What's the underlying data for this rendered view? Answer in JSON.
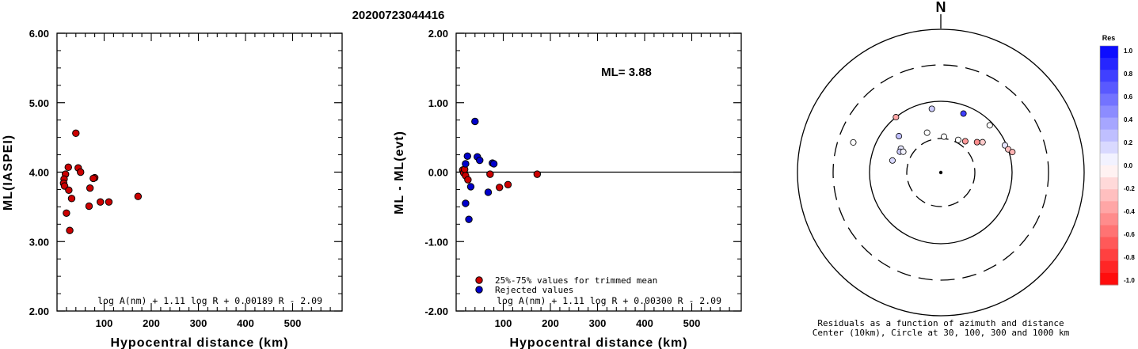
{
  "title": "20200723044416",
  "chart_data": [
    {
      "type": "scatter",
      "xlabel": "Hypocentral distance (km)",
      "ylabel": "ML(IASPEI)",
      "xlim": [
        0,
        600
      ],
      "ylim": [
        2.0,
        6.0
      ],
      "xticks": [
        "100",
        "200",
        "300",
        "400",
        "500"
      ],
      "yticks": [
        "2.00",
        "3.00",
        "4.00",
        "5.00",
        "6.00"
      ],
      "formula": "log A(nm) + 1.11 log R + 0.00189 R - 2.09",
      "point_color": "#cc0000",
      "points": [
        [
          40,
          4.56
        ],
        [
          24,
          4.07
        ],
        [
          45,
          4.06
        ],
        [
          50,
          4.0
        ],
        [
          18,
          3.97
        ],
        [
          15,
          3.9
        ],
        [
          80,
          3.92
        ],
        [
          77,
          3.91
        ],
        [
          14,
          3.84
        ],
        [
          16,
          3.8
        ],
        [
          70,
          3.77
        ],
        [
          25,
          3.74
        ],
        [
          31,
          3.62
        ],
        [
          172,
          3.65
        ],
        [
          92,
          3.57
        ],
        [
          110,
          3.57
        ],
        [
          68,
          3.51
        ],
        [
          20,
          3.41
        ],
        [
          27,
          3.16
        ]
      ]
    },
    {
      "type": "scatter",
      "xlabel": "Hypocentral distance (km)",
      "ylabel": "ML - ML(evt)",
      "xlim": [
        0,
        600
      ],
      "ylim": [
        -2.0,
        2.0
      ],
      "xticks": [
        "100",
        "200",
        "300",
        "400",
        "500"
      ],
      "yticks": [
        "-2.00",
        "-1.00",
        "0.00",
        "1.00",
        "2.00"
      ],
      "annotation": "ML= 3.88",
      "formula": "log A(nm) + 1.11 log R + 0.00300 R - 2.09",
      "zero_line": true,
      "legend": [
        {
          "label": "25%-75% values for trimmed mean",
          "color": "#cc0000"
        },
        {
          "label": "Rejected values",
          "color": "#0000cc"
        }
      ],
      "series": [
        {
          "name": "25%-75% values for trimmed mean",
          "color": "#cc0000",
          "points": [
            [
              14,
              0.03
            ],
            [
              16,
              -0.01
            ],
            [
              18,
              0.04
            ],
            [
              20,
              -0.05
            ],
            [
              25,
              -0.11
            ],
            [
              72,
              -0.03
            ],
            [
              92,
              -0.22
            ],
            [
              110,
              -0.18
            ],
            [
              172,
              -0.03
            ]
          ]
        },
        {
          "name": "Rejected values",
          "color": "#0000cc",
          "points": [
            [
              40,
              0.73
            ],
            [
              24,
              0.23
            ],
            [
              45,
              0.22
            ],
            [
              50,
              0.17
            ],
            [
              20,
              0.12
            ],
            [
              77,
              0.13
            ],
            [
              80,
              0.12
            ],
            [
              31,
              -0.21
            ],
            [
              68,
              -0.29
            ],
            [
              20,
              -0.45
            ],
            [
              27,
              -0.68
            ]
          ]
        }
      ]
    },
    {
      "type": "polar-scatter",
      "north_label": "N",
      "caption_line1": "Residuals as a function of azimuth and distance",
      "caption_line2": "Center (10km), Circle at 30, 100, 300 and 1000 km",
      "circles_km": [
        30,
        100,
        300,
        1000
      ],
      "dashed_circles_km": [
        30,
        300
      ],
      "colorbar": {
        "label": "Res",
        "ticks": [
          "1.0",
          "0.8",
          "0.6",
          "0.4",
          "0.2",
          "0.0",
          "-0.2",
          "-0.4",
          "-0.6",
          "-0.8",
          "-1.0"
        ],
        "max_color": "#0000ff",
        "zero_color": "#ffffff",
        "min_color": "#ff0000"
      },
      "points": [
        {
          "azimuth_deg": 289,
          "distance_km": 190,
          "residual": 0.0
        },
        {
          "azimuth_deg": 321,
          "distance_km": 100,
          "residual": -0.35
        },
        {
          "azimuth_deg": 352,
          "distance_km": 80,
          "residual": 0.2
        },
        {
          "azimuth_deg": 21,
          "distance_km": 77,
          "residual": 0.75
        },
        {
          "azimuth_deg": 46,
          "distance_km": 90,
          "residual": 0.0
        },
        {
          "azimuth_deg": 311,
          "distance_km": 60,
          "residual": 0.25
        },
        {
          "azimuth_deg": 301,
          "distance_km": 45,
          "residual": 0.1
        },
        {
          "azimuth_deg": 297,
          "distance_km": 44,
          "residual": 0.2
        },
        {
          "azimuth_deg": 299,
          "distance_km": 40,
          "residual": 0.05
        },
        {
          "azimuth_deg": 284,
          "distance_km": 50,
          "residual": 0.15
        },
        {
          "azimuth_deg": 341,
          "distance_km": 39,
          "residual": 0.0
        },
        {
          "azimuth_deg": 5,
          "distance_km": 32,
          "residual": 0.0
        },
        {
          "azimuth_deg": 28,
          "distance_km": 33,
          "residual": 0.0
        },
        {
          "azimuth_deg": 38,
          "distance_km": 36,
          "residual": -0.4
        },
        {
          "azimuth_deg": 50,
          "distance_km": 46,
          "residual": -0.45
        },
        {
          "azimuth_deg": 54,
          "distance_km": 53,
          "residual": -0.2
        },
        {
          "azimuth_deg": 67,
          "distance_km": 95,
          "residual": 0.1
        },
        {
          "azimuth_deg": 71,
          "distance_km": 100,
          "residual": -0.25
        },
        {
          "azimuth_deg": 74,
          "distance_km": 110,
          "residual": -0.3
        }
      ]
    }
  ]
}
